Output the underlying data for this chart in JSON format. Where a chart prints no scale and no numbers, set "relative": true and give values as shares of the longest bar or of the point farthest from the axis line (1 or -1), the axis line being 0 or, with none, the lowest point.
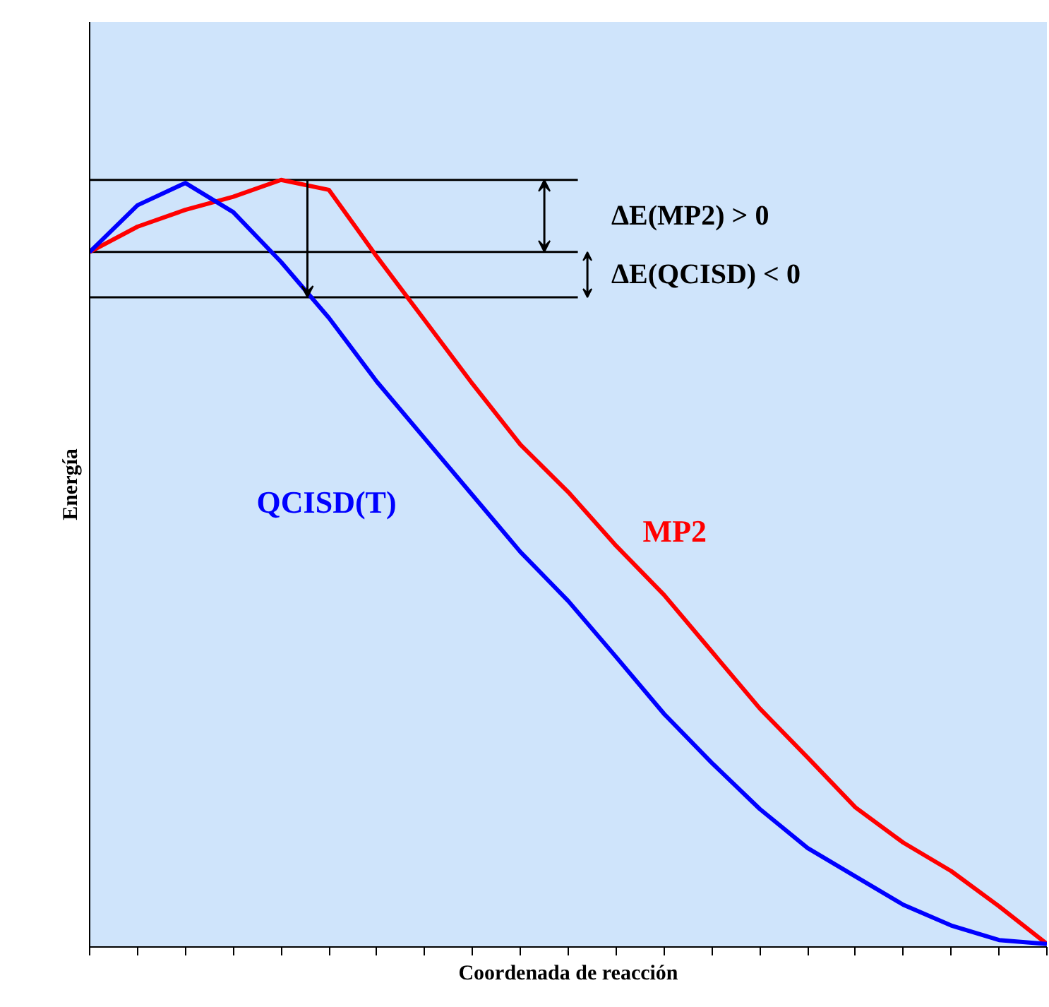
{
  "chart_data": {
    "type": "line",
    "relative": true,
    "xlabel": "Coordenada de reacción",
    "ylabel": "Energía",
    "grid": false,
    "line_style": "solid",
    "marker": "none",
    "categories": [
      null,
      null,
      null,
      null,
      null,
      null,
      null,
      null,
      null,
      null,
      null,
      null,
      null,
      null,
      null,
      null,
      null,
      null,
      null,
      null,
      null
    ],
    "series": [
      {
        "name": "MP2",
        "color": "#ff0000",
        "values": [
          0.906,
          0.939,
          0.961,
          0.978,
          1.0,
          0.987,
          0.9,
          0.817,
          0.734,
          0.655,
          0.593,
          0.523,
          0.459,
          0.385,
          0.311,
          0.247,
          0.182,
          0.136,
          0.099,
          0.053,
          0.004
        ]
      },
      {
        "name": "QCISD(T)",
        "color": "#0000ff",
        "values": [
          0.906,
          0.967,
          0.996,
          0.958,
          0.893,
          0.82,
          0.737,
          0.663,
          0.589,
          0.515,
          0.451,
          0.378,
          0.304,
          0.24,
          0.18,
          0.129,
          0.092,
          0.055,
          0.028,
          0.009,
          0.004
        ]
      }
    ],
    "ref_lines": [
      {
        "axis": "y",
        "value": 1.0,
        "color": "#000000"
      },
      {
        "axis": "y",
        "value": 0.906,
        "color": "#000000"
      },
      {
        "axis": "y",
        "value": 0.847,
        "color": "#000000"
      }
    ],
    "annotations": [
      "ΔE(MP2) > 0",
      "ΔE(QCISD) < 0"
    ]
  }
}
